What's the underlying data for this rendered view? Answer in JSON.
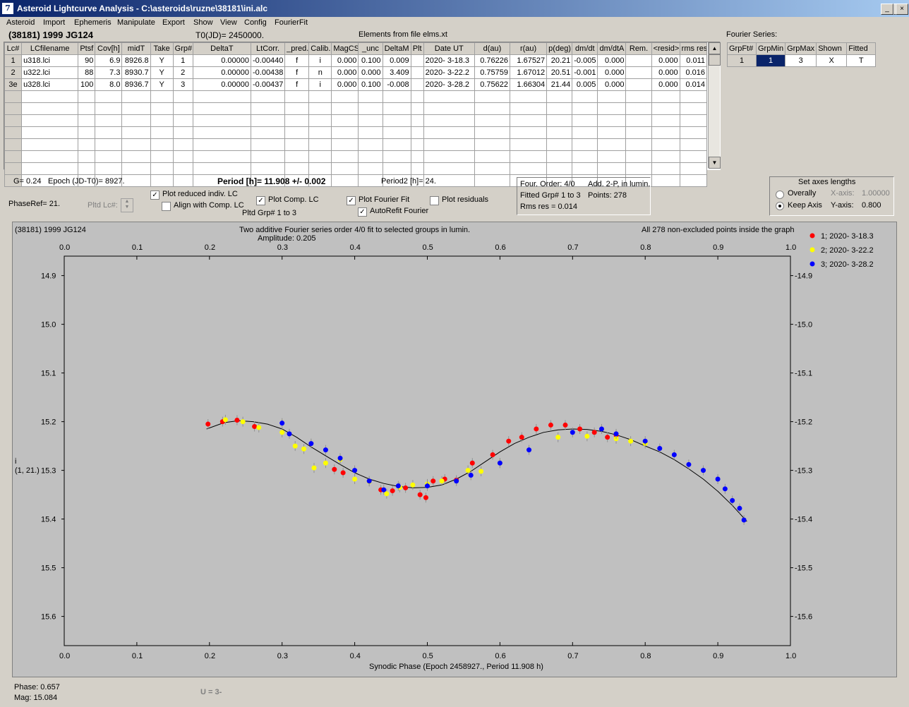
{
  "window": {
    "title": "Asteroid Lightcurve Analysis - C:\\asteroids\\ruzne\\38181\\ini.alc",
    "app_icon_glyph": "7"
  },
  "menu": [
    "Asteroid",
    "Import",
    "Ephemeris",
    "Manipulate",
    "Export",
    "Show",
    "View",
    "Config",
    "FourierFit"
  ],
  "asteroid_name": "(38181) 1999 JG124",
  "t0": "T0(JD)= 2450000.",
  "elements_note": "Elements from file elms.xt",
  "lc_table": {
    "headers": [
      "Lc#",
      "LCfilename",
      "Ptsf",
      "Cov[h]",
      "midT",
      "Take",
      "Grp#",
      "DeltaT",
      "LtCorr.",
      "_pred.",
      "Calib.",
      "MagCS",
      "_unc",
      "DeltaM",
      "Plt",
      "Date UT",
      "d(au)",
      "r(au)",
      "p(deg)",
      "dm/dt",
      "dm/dtA",
      "Rem.",
      "<resid>",
      "rms res"
    ],
    "rows": [
      [
        "1",
        "u318.lci",
        "90",
        "6.9",
        "8926.8",
        "Y",
        "1",
        "0.00000",
        "-0.00440",
        "f",
        "i",
        "0.000",
        "0.100",
        "0.009",
        "",
        "2020- 3-18.3",
        "0.76226",
        "1.67527",
        "20.21",
        "-0.005",
        "0.000",
        "",
        "0.000",
        "0.011"
      ],
      [
        "2",
        "u322.lci",
        "88",
        "7.3",
        "8930.7",
        "Y",
        "2",
        "0.00000",
        "-0.00438",
        "f",
        "n",
        "0.000",
        "0.000",
        "3.409",
        "",
        "2020- 3-22.2",
        "0.75759",
        "1.67012",
        "20.51",
        "-0.001",
        "0.000",
        "",
        "0.000",
        "0.016"
      ],
      [
        "3e",
        "u328.lci",
        "100",
        "8.0",
        "8936.7",
        "Y",
        "3",
        "0.00000",
        "-0.00437",
        "f",
        "i",
        "0.000",
        "0.100",
        "-0.008",
        "",
        "2020- 3-28.2",
        "0.75622",
        "1.66304",
        "21.44",
        "0.005",
        "0.000",
        "",
        "0.000",
        "0.014"
      ]
    ]
  },
  "fourier_series": {
    "label": "Fourier Series:",
    "headers": [
      "GrpFt#",
      "GrpMin",
      "GrpMax",
      "Shown",
      "Fitted"
    ],
    "row": [
      "1",
      "1",
      "3",
      "X",
      "T"
    ]
  },
  "params": {
    "g": "G= 0.24",
    "epoch": "Epoch (JD-T0)= 8927.",
    "period": "Period [h]= 11.908 +/- 0.002",
    "period2": "Period2 [h]= 24.",
    "phaseref": "PhaseRef= 21.",
    "pltd_lc": "Pltd Lc#:",
    "pltd_grp": "Pltd Grp#  1   to   3"
  },
  "checkboxes": {
    "plot_reduced": {
      "label": "Plot reduced indiv. LC",
      "checked": "true"
    },
    "align_comp": {
      "label": "Align with Comp. LC",
      "checked": "false"
    },
    "plot_comp": {
      "label": "Plot Comp. LC",
      "checked": "true"
    },
    "plot_fourier": {
      "label": "Plot Fourier Fit",
      "checked": "true"
    },
    "plot_resid": {
      "label": "Plot residuals",
      "checked": "false"
    },
    "autorefit": {
      "label": "AutoRefit Fourier",
      "checked": "true"
    }
  },
  "fit_info": {
    "order": "Four. Order:  4/0",
    "add": "Add. 2-P, in lumin.",
    "fitted": "Fitted Grp# 1 to 3",
    "points": "Points: 278",
    "rms": "Rms res     = 0.014"
  },
  "axes_box": {
    "title": "Set axes lengths",
    "overally": "Overally",
    "keep": "Keep Axis",
    "x_label": "X-axis:",
    "x_value": "1.00000",
    "y_label": "Y-axis:",
    "y_value": "0.800",
    "selected": "Keep Axis"
  },
  "status": {
    "phase": "Phase:  0.657",
    "mag": "Mag:    15.084",
    "u": "U = 3-"
  },
  "colors": {
    "group1": "#ff0000",
    "group2": "#ffff00",
    "group3": "#0000ff",
    "plot_bg": "#c0c0c0",
    "selected_cell": "#0a246a"
  },
  "chart_data": {
    "type": "scatter",
    "header_left": "(38181) 1999 JG124",
    "title": "Two additive Fourier series order 4/0 fit to selected groups in lumin.",
    "subtitle": "Amplitude: 0.205",
    "header_right": "All 278 non-excluded points inside the graph",
    "xlabel": "Synodic Phase (Epoch 2458927., Period 11.908 h)",
    "ylabel": "i",
    "ylabel2": "(1, 21.)",
    "xlim": [
      0.0,
      1.0
    ],
    "ylim": [
      14.86,
      15.66
    ],
    "y_inverted": true,
    "xticks": [
      "0.0",
      "0.1",
      "0.2",
      "0.3",
      "0.4",
      "0.5",
      "0.6",
      "0.7",
      "0.8",
      "0.9",
      "1.0"
    ],
    "yticks": [
      "14.9",
      "15.0",
      "15.1",
      "15.2",
      "15.3",
      "15.4",
      "15.5",
      "15.6"
    ],
    "legend": [
      "1; 2020- 3-18.3",
      "2; 2020- 3-22.2",
      "3; 2020- 3-28.2"
    ],
    "legend_position": "top-right, outside plot",
    "fourier_curve": {
      "x": [
        0.196,
        0.22,
        0.24,
        0.26,
        0.28,
        0.3,
        0.32,
        0.34,
        0.36,
        0.38,
        0.4,
        0.42,
        0.44,
        0.46,
        0.48,
        0.5,
        0.52,
        0.54,
        0.56,
        0.58,
        0.6,
        0.62,
        0.64,
        0.66,
        0.68,
        0.7,
        0.72,
        0.74,
        0.76,
        0.78,
        0.8,
        0.82,
        0.84,
        0.86,
        0.88,
        0.9,
        0.92,
        0.94
      ],
      "y": [
        15.215,
        15.202,
        15.198,
        15.2,
        15.205,
        15.215,
        15.232,
        15.252,
        15.27,
        15.288,
        15.305,
        15.318,
        15.327,
        15.333,
        15.336,
        15.335,
        15.33,
        15.318,
        15.302,
        15.282,
        15.262,
        15.245,
        15.232,
        15.222,
        15.217,
        15.215,
        15.216,
        15.22,
        15.227,
        15.237,
        15.25,
        15.262,
        15.278,
        15.297,
        15.318,
        15.343,
        15.372,
        15.405
      ]
    },
    "series": [
      {
        "name": "1; 2020- 3-18.3",
        "x": [
          0.198,
          0.218,
          0.238,
          0.262,
          0.372,
          0.384,
          0.436,
          0.452,
          0.47,
          0.49,
          0.498,
          0.508,
          0.524,
          0.54,
          0.562,
          0.59,
          0.612,
          0.63,
          0.65,
          0.67,
          0.69,
          0.71,
          0.73,
          0.748,
          0.76
        ],
        "y": [
          15.205,
          15.2,
          15.197,
          15.21,
          15.298,
          15.305,
          15.34,
          15.342,
          15.336,
          15.35,
          15.356,
          15.322,
          15.318,
          15.32,
          15.285,
          15.268,
          15.24,
          15.232,
          15.215,
          15.207,
          15.207,
          15.215,
          15.222,
          15.232,
          15.228
        ]
      },
      {
        "name": "2; 2020- 3-22.2",
        "x": [
          0.222,
          0.246,
          0.268,
          0.3,
          0.318,
          0.33,
          0.344,
          0.36,
          0.38,
          0.4,
          0.42,
          0.444,
          0.462,
          0.48,
          0.5,
          0.52,
          0.556,
          0.574,
          0.6,
          0.68,
          0.72,
          0.76,
          0.78,
          0.8
        ],
        "y": [
          15.196,
          15.2,
          15.212,
          15.222,
          15.25,
          15.256,
          15.295,
          15.285,
          15.278,
          15.318,
          15.323,
          15.348,
          15.335,
          15.33,
          15.328,
          15.322,
          15.3,
          15.302,
          15.285,
          15.232,
          15.23,
          15.235,
          15.24,
          15.245
        ]
      },
      {
        "name": "3; 2020- 3-28.2",
        "x": [
          0.3,
          0.31,
          0.34,
          0.36,
          0.38,
          0.4,
          0.42,
          0.44,
          0.46,
          0.5,
          0.54,
          0.56,
          0.6,
          0.64,
          0.7,
          0.74,
          0.76,
          0.8,
          0.82,
          0.84,
          0.86,
          0.88,
          0.9,
          0.91,
          0.92,
          0.93,
          0.936
        ],
        "y": [
          15.203,
          15.225,
          15.245,
          15.258,
          15.275,
          15.3,
          15.322,
          15.34,
          15.332,
          15.332,
          15.322,
          15.31,
          15.285,
          15.258,
          15.222,
          15.215,
          15.225,
          15.24,
          15.255,
          15.268,
          15.288,
          15.3,
          15.318,
          15.338,
          15.362,
          15.378,
          15.402
        ]
      }
    ]
  }
}
